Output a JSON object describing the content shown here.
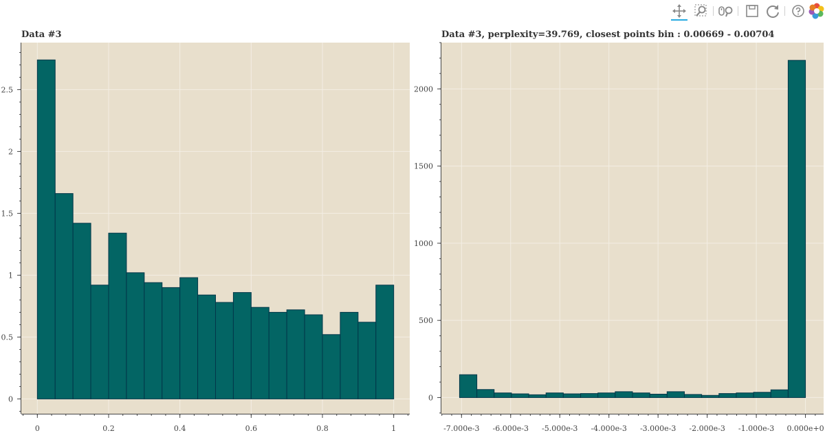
{
  "toolbar": {
    "tools": [
      {
        "name": "pan-tool",
        "icon": "pan-icon",
        "active": true
      },
      {
        "name": "box-zoom-tool",
        "icon": "box-zoom-icon",
        "active": false
      },
      {
        "name": "wheel-zoom-tool",
        "icon": "wheel-zoom-icon",
        "active": false
      },
      {
        "name": "save-tool",
        "icon": "save-icon",
        "active": false
      },
      {
        "name": "reset-tool",
        "icon": "reset-icon",
        "active": false
      },
      {
        "name": "help-tool",
        "icon": "help-icon",
        "active": false
      },
      {
        "name": "bokeh-logo",
        "icon": "bokeh-logo-icon",
        "active": false
      }
    ]
  },
  "colors": {
    "plot_background": "#e8dfcc",
    "bar_fill": "#036564",
    "bar_line": "#033649",
    "grid": "#f3eee4",
    "axis": "#444444"
  },
  "chart_data": [
    {
      "type": "bar",
      "title": "Data #3",
      "xlabel": "",
      "ylabel": "",
      "bin_edges": [
        0,
        0.05,
        0.1,
        0.15,
        0.2,
        0.25,
        0.3,
        0.35,
        0.4,
        0.45,
        0.5,
        0.55,
        0.6,
        0.65,
        0.7,
        0.75,
        0.8,
        0.85,
        0.9,
        0.95,
        1.0
      ],
      "values": [
        2.74,
        1.66,
        1.42,
        0.92,
        1.34,
        1.02,
        0.94,
        0.9,
        0.98,
        0.84,
        0.78,
        0.86,
        0.74,
        0.7,
        0.72,
        0.68,
        0.52,
        0.7,
        0.62,
        0.92
      ],
      "xlim": [
        -0.045,
        1.045
      ],
      "ylim": [
        -0.12,
        2.88
      ],
      "xticks": [
        0,
        0.2,
        0.4,
        0.6,
        0.8,
        1
      ],
      "xtick_labels": [
        "0",
        "0.2",
        "0.4",
        "0.6",
        "0.8",
        "1"
      ],
      "yticks": [
        0,
        0.5,
        1,
        1.5,
        2,
        2.5
      ],
      "ytick_labels": [
        "0",
        "0.5",
        "1",
        "1.5",
        "2",
        "2.5"
      ],
      "grid": true
    },
    {
      "type": "bar",
      "title": "Data #3, perplexity=39.769, closest points bin : 0.00669 - 0.00704",
      "xlabel": "",
      "ylabel": "",
      "bin_edges": [
        -0.00704,
        -0.006688,
        -0.006336,
        -0.005984,
        -0.005632,
        -0.00528,
        -0.004928,
        -0.004576,
        -0.004224,
        -0.003872,
        -0.00352,
        -0.003168,
        -0.002816,
        -0.002464,
        -0.002112,
        -0.00176,
        -0.001408,
        -0.001056,
        -0.000704,
        -0.000352,
        0
      ],
      "values": [
        148,
        52,
        30,
        24,
        18,
        30,
        24,
        26,
        30,
        38,
        30,
        22,
        38,
        20,
        14,
        26,
        30,
        34,
        50,
        2185
      ],
      "xlim": [
        -0.00741,
        0.00037
      ],
      "ylim": [
        -105,
        2300
      ],
      "xticks": [
        -0.007,
        -0.006,
        -0.005,
        -0.004,
        -0.003,
        -0.002,
        -0.001,
        0
      ],
      "xtick_labels": [
        "-7.000e-3",
        "-6.000e-3",
        "-5.000e-3",
        "-4.000e-3",
        "-3.000e-3",
        "-2.000e-3",
        "-1.000e-3",
        "0.000e+0"
      ],
      "yticks": [
        0,
        500,
        1000,
        1500,
        2000
      ],
      "ytick_labels": [
        "0",
        "500",
        "1000",
        "1500",
        "2000"
      ],
      "grid": true
    }
  ]
}
